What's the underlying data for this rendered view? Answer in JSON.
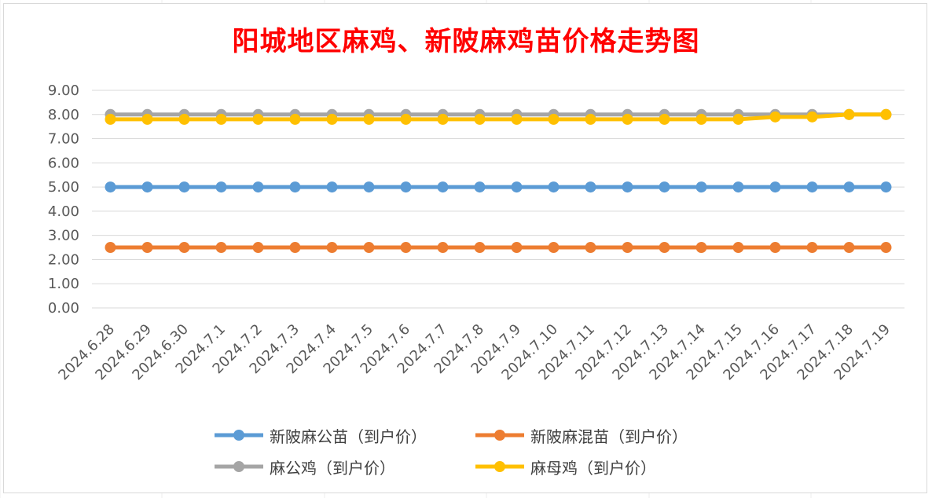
{
  "chart_data": {
    "type": "line",
    "title": "阳城地区麻鸡、新陂麻鸡苗价格走势图",
    "categories": [
      "2024.6.28",
      "2024.6.29",
      "2024.6.30",
      "2024.7.1",
      "2024.7.2",
      "2024.7.3",
      "2024.7.4",
      "2024.7.5",
      "2024.7.6",
      "2024.7.7",
      "2024.7.8",
      "2024.7.9",
      "2024.7.10",
      "2024.7.11",
      "2024.7.12",
      "2024.7.13",
      "2024.7.14",
      "2024.7.15",
      "2024.7.16",
      "2024.7.17",
      "2024.7.18",
      "2024.7.19"
    ],
    "ylim": [
      0,
      9
    ],
    "y_ticks": [
      "0.00",
      "1.00",
      "2.00",
      "3.00",
      "4.00",
      "5.00",
      "6.00",
      "7.00",
      "8.00",
      "9.00"
    ],
    "grid": true,
    "legend_position": "bottom",
    "series": [
      {
        "name": "新陂麻公苗（到户价）",
        "color": "#5b9bd5",
        "values": [
          5,
          5,
          5,
          5,
          5,
          5,
          5,
          5,
          5,
          5,
          5,
          5,
          5,
          5,
          5,
          5,
          5,
          5,
          5,
          5,
          5,
          5
        ]
      },
      {
        "name": "新陂麻混苗（到户价）",
        "color": "#ed7d31",
        "values": [
          2.5,
          2.5,
          2.5,
          2.5,
          2.5,
          2.5,
          2.5,
          2.5,
          2.5,
          2.5,
          2.5,
          2.5,
          2.5,
          2.5,
          2.5,
          2.5,
          2.5,
          2.5,
          2.5,
          2.5,
          2.5,
          2.5
        ]
      },
      {
        "name": "麻公鸡（到户价）",
        "color": "#a5a5a5",
        "values": [
          8,
          8,
          8,
          8,
          8,
          8,
          8,
          8,
          8,
          8,
          8,
          8,
          8,
          8,
          8,
          8,
          8,
          8,
          8,
          8,
          8,
          8
        ]
      },
      {
        "name": "麻母鸡（到户价）",
        "color": "#ffc000",
        "values": [
          7.8,
          7.8,
          7.8,
          7.8,
          7.8,
          7.8,
          7.8,
          7.8,
          7.8,
          7.8,
          7.8,
          7.8,
          7.8,
          7.8,
          7.8,
          7.8,
          7.8,
          7.8,
          7.9,
          7.9,
          8,
          8
        ]
      }
    ]
  }
}
